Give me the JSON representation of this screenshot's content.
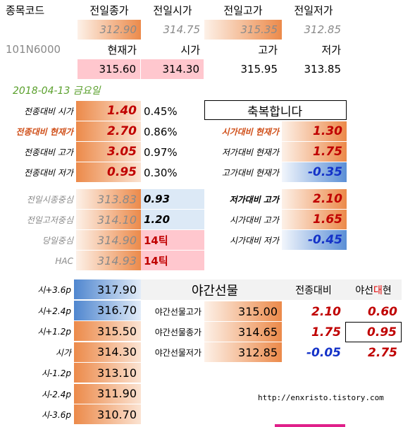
{
  "header": {
    "code_label": "종목코드",
    "code": "101N6000",
    "prev_labels": [
      "전일종가",
      "전일시가",
      "전일고가",
      "전일저가"
    ],
    "prev_values": [
      "312.90",
      "314.75",
      "315.35",
      "312.85"
    ],
    "cur_labels": [
      "현재가",
      "시가",
      "고가",
      "저가"
    ],
    "cur_values": [
      "315.60",
      "314.30",
      "315.95",
      "313.85"
    ],
    "date": "2018-04-13 금요일"
  },
  "vs_prev": [
    {
      "label": "전종대비 시가",
      "diff": "1.40",
      "pct": "0.45%"
    },
    {
      "label": "전종대비 현재가",
      "diff": "2.70",
      "pct": "0.86%"
    },
    {
      "label": "전종대비 고가",
      "diff": "3.05",
      "pct": "0.97%"
    },
    {
      "label": "전종대비 저가",
      "diff": "0.95",
      "pct": "0.30%"
    }
  ],
  "message": "축복합니다",
  "vs_open": [
    {
      "label": "시가대비 현재가",
      "value": "1.30"
    },
    {
      "label": "저가대비 현재가",
      "value": "1.75"
    },
    {
      "label": "고가대비 현재가",
      "value": "-0.35"
    }
  ],
  "centers": [
    {
      "label": "전일시종중심",
      "value": "313.83",
      "diff": "0.93"
    },
    {
      "label": "전일고저중심",
      "value": "314.10",
      "diff": "1.20"
    },
    {
      "label": "당일중심",
      "value": "314.90",
      "diff": "14틱"
    },
    {
      "label": "HAC",
      "value": "314.93",
      "diff": "14틱"
    }
  ],
  "ranges": [
    {
      "label": "저가대비 고가",
      "value": "2.10"
    },
    {
      "label": "시가대비 고가",
      "value": "1.65"
    },
    {
      "label": "시가대비 저가",
      "value": "-0.45"
    }
  ],
  "levels": [
    {
      "label": "시+3.6p",
      "value": "317.90"
    },
    {
      "label": "시+2.4p",
      "value": "316.70"
    },
    {
      "label": "시+1.2p",
      "value": "315.50"
    },
    {
      "label": "시가",
      "value": "314.30"
    },
    {
      "label": "시-1.2p",
      "value": "313.10"
    },
    {
      "label": "시-2.4p",
      "value": "311.90"
    },
    {
      "label": "시-3.6p",
      "value": "310.70"
    }
  ],
  "night": {
    "title": "야간선물",
    "col1": "전종대비",
    "col2_parts": [
      "야선",
      "대",
      "현"
    ],
    "rows": [
      {
        "label": "야간선물고가",
        "price": "315.00",
        "vs_prev": "2.10",
        "vs_cur": "0.60"
      },
      {
        "label": "야간선물종가",
        "price": "314.65",
        "vs_prev": "1.75",
        "vs_cur": "0.95"
      },
      {
        "label": "야간선물저가",
        "price": "312.85",
        "vs_prev": "-0.05",
        "vs_cur": "2.75"
      }
    ]
  },
  "url": "http://enxristo.tistory.com"
}
